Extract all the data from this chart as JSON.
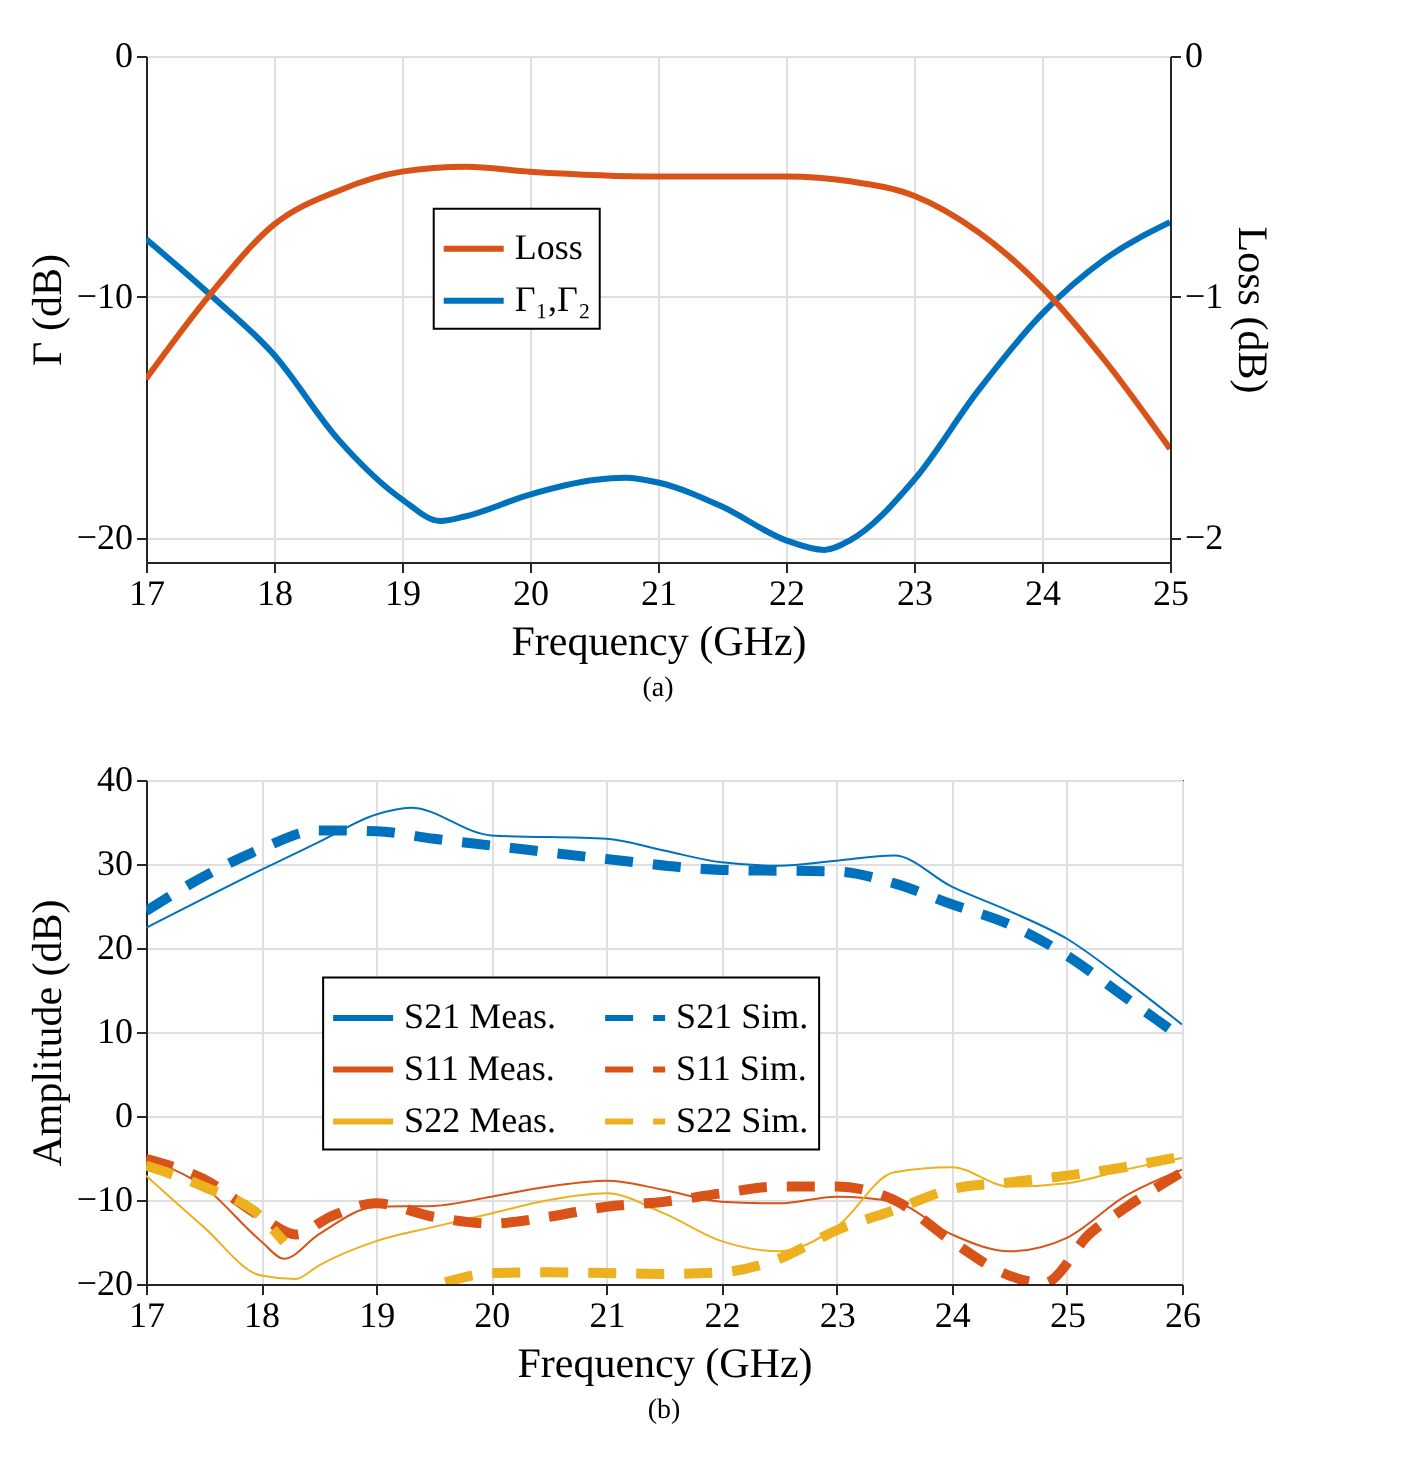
{
  "chart_data": [
    {
      "type": "line",
      "xlabel": "Frequency (GHz)",
      "ylabel": "Γ (dB)",
      "y2label": "Loss (dB)",
      "annotations": [
        "(a)"
      ],
      "xlim": [
        17,
        25
      ],
      "xticks": [
        17,
        18,
        19,
        20,
        21,
        22,
        23,
        24,
        25
      ],
      "ylim": [
        -21,
        0
      ],
      "yticks": [
        -20,
        -10,
        0
      ],
      "y2lim": [
        -2.1,
        0
      ],
      "y2ticks": [
        -2,
        -1,
        0
      ],
      "grid": true,
      "legend": "top",
      "line_style": "solid",
      "series": [
        {
          "name": "Loss",
          "color": "#d95319",
          "axis": "y2",
          "x": [
            17,
            17.5,
            18,
            18.5,
            19,
            19.5,
            20,
            21,
            22,
            22.5,
            23,
            23.5,
            24,
            24.5,
            25
          ],
          "values": [
            -1.34,
            -0.99,
            -0.7,
            -0.56,
            -0.48,
            -0.46,
            -0.48,
            -0.5,
            -0.5,
            -0.52,
            -0.58,
            -0.73,
            -0.96,
            -1.27,
            -1.63
          ]
        },
        {
          "name": "Γ₁,Γ₂",
          "color": "#0072bd",
          "x": [
            17,
            17.5,
            18,
            18.5,
            19,
            19.3,
            19.5,
            20,
            20.5,
            20.75,
            21,
            21.5,
            22,
            22.3,
            22.5,
            23,
            23.5,
            24,
            24.5,
            25
          ],
          "values": [
            -7.6,
            -9.9,
            -12.4,
            -15.9,
            -18.4,
            -19.3,
            -19.1,
            -18.2,
            -17.6,
            -17.5,
            -17.7,
            -18.7,
            -20.1,
            -20.5,
            -20.1,
            -17.6,
            -13.9,
            -10.7,
            -8.4,
            -6.9
          ]
        }
      ]
    },
    {
      "type": "line",
      "xlabel": "Frequency (GHz)",
      "ylabel": "Amplitude (dB)",
      "annotations": [
        "(b)"
      ],
      "xlim": [
        17,
        26
      ],
      "xticks": [
        17,
        18,
        19,
        20,
        21,
        22,
        23,
        24,
        25,
        26
      ],
      "ylim": [
        -20,
        40
      ],
      "yticks": [
        -20,
        -10,
        0,
        10,
        20,
        30,
        40
      ],
      "grid": true,
      "legend": "center",
      "series": [
        {
          "name": "S21 Meas.",
          "color": "#0072bd",
          "line_style": "solid",
          "x": [
            17,
            18,
            18.5,
            19,
            19.3,
            20,
            21,
            21.5,
            22,
            22.5,
            23,
            23.5,
            24,
            24.5,
            25,
            25.5,
            26
          ],
          "values": [
            22.4,
            29.3,
            32.6,
            35.9,
            36.7,
            33.4,
            33.0,
            31.6,
            30.2,
            29.8,
            30.4,
            31.0,
            27.3,
            24.4,
            21.1,
            16.2,
            10.9
          ]
        },
        {
          "name": "S11 Meas.",
          "color": "#d95319",
          "line_style": "solid",
          "x": [
            17,
            17.5,
            18,
            18.2,
            18.5,
            19,
            19.5,
            20,
            20.5,
            21,
            21.5,
            22,
            22.5,
            23,
            23.5,
            24,
            24.5,
            25,
            25.5,
            26
          ],
          "values": [
            -5.1,
            -8.4,
            -14.9,
            -17,
            -14.1,
            -10.8,
            -10.7,
            -9.6,
            -8.4,
            -7.7,
            -8.8,
            -10.2,
            -10.4,
            -9.6,
            -10.2,
            -14.1,
            -16.1,
            -14.5,
            -9.6,
            -6.4
          ]
        },
        {
          "name": "S22 Meas.",
          "color": "#edb120",
          "line_style": "solid",
          "x": [
            17,
            17.5,
            18,
            18.3,
            18.5,
            19,
            19.5,
            20,
            20.5,
            21,
            21.5,
            22,
            22.5,
            23,
            23.5,
            24,
            24.5,
            25,
            25.5,
            26
          ],
          "values": [
            -7.1,
            -13.2,
            -19.0,
            -19.4,
            -17.8,
            -14.9,
            -13.2,
            -11.6,
            -10.0,
            -9.2,
            -11.6,
            -14.9,
            -16.1,
            -13.2,
            -6.7,
            -6.1,
            -8.4,
            -8.0,
            -6.4,
            -5.0
          ]
        },
        {
          "name": "S21 Sim.",
          "color": "#0072bd",
          "line_style": "dashed",
          "x": [
            17,
            17.5,
            18,
            18.5,
            19,
            19.5,
            20,
            21,
            22,
            23,
            23.5,
            24,
            24.5,
            25,
            25.5,
            26
          ],
          "values": [
            24.4,
            28.5,
            31.8,
            34.0,
            33.9,
            33.0,
            32.2,
            30.6,
            29.3,
            29.1,
            27.7,
            25.2,
            22.8,
            19.1,
            14.2,
            9.3
          ]
        },
        {
          "name": "S11 Sim.",
          "color": "#d95319",
          "line_style": "dashed",
          "x": [
            17,
            17.5,
            18,
            18.3,
            18.6,
            19,
            19.5,
            20,
            20.5,
            21,
            21.5,
            22,
            22.5,
            23,
            23.5,
            24,
            24.5,
            24.8,
            25.2,
            25.5,
            26
          ],
          "values": [
            -5.1,
            -7.5,
            -12.0,
            -14.1,
            -12.0,
            -10.4,
            -12.0,
            -12.8,
            -12.0,
            -10.8,
            -10.2,
            -9.2,
            -8.4,
            -8.4,
            -10.0,
            -14.9,
            -19.0,
            -19.9,
            -14.0,
            -11.0,
            -6.7
          ]
        },
        {
          "name": "S22 Sim.",
          "color": "#edb120",
          "line_style": "dashed",
          "x": [
            17,
            17.5,
            18,
            18.2,
            18.8,
            19.6,
            20,
            20.5,
            21,
            21.5,
            22,
            22.5,
            23,
            23.5,
            24,
            24.5,
            25,
            25.5,
            26
          ],
          "values": [
            -5.9,
            -8.4,
            -12.0,
            -15.0,
            null,
            -19.8,
            -18.7,
            -18.6,
            -18.7,
            -18.8,
            -18.6,
            -17.0,
            -13.6,
            -11.2,
            -8.7,
            -7.9,
            -7.1,
            -6.1,
            -4.8
          ]
        }
      ]
    }
  ]
}
